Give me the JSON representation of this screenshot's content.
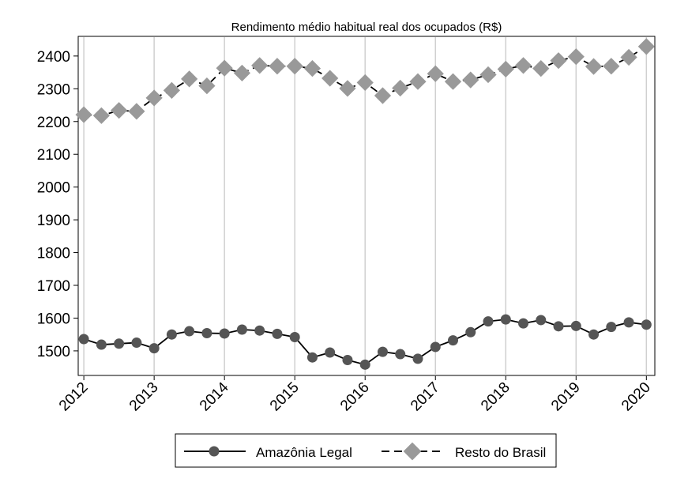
{
  "chart_data": {
    "type": "line",
    "title": "Rendimento médio habitual real dos ocupados (R$)",
    "xlabel": "",
    "ylabel": "",
    "x_tick_labels": [
      "2012",
      "2013",
      "2014",
      "2015",
      "2016",
      "2017",
      "2018",
      "2019",
      "2020"
    ],
    "x_range": [
      2011.92,
      2020.12
    ],
    "ylim": [
      1425,
      2460
    ],
    "y_ticks": [
      1500,
      1600,
      1700,
      1800,
      1900,
      2000,
      2100,
      2200,
      2300,
      2400
    ],
    "grid": "vertical lines at each year",
    "legend_position": "bottom",
    "x": [
      2012.0,
      2012.25,
      2012.5,
      2012.75,
      2013.0,
      2013.25,
      2013.5,
      2013.75,
      2014.0,
      2014.25,
      2014.5,
      2014.75,
      2015.0,
      2015.25,
      2015.5,
      2015.75,
      2016.0,
      2016.25,
      2016.5,
      2016.75,
      2017.0,
      2017.25,
      2017.5,
      2017.75,
      2018.0,
      2018.25,
      2018.5,
      2018.75,
      2019.0,
      2019.25,
      2019.5,
      2019.75,
      2020.0
    ],
    "series": [
      {
        "name": "Amazônia Legal",
        "style": "solid",
        "marker": "circle",
        "color": "#555555",
        "values": [
          1536,
          1519,
          1522,
          1525,
          1508,
          1550,
          1560,
          1554,
          1553,
          1565,
          1562,
          1552,
          1542,
          1480,
          1495,
          1472,
          1458,
          1497,
          1490,
          1476,
          1512,
          1532,
          1557,
          1590,
          1596,
          1584,
          1594,
          1575,
          1576,
          1550,
          1573,
          1587,
          1580
        ]
      },
      {
        "name": "Resto do Brasil",
        "style": "dashed",
        "marker": "diamond",
        "color": "#999999",
        "values": [
          2221,
          2218,
          2234,
          2231,
          2272,
          2295,
          2330,
          2309,
          2363,
          2348,
          2371,
          2369,
          2369,
          2362,
          2332,
          2301,
          2319,
          2279,
          2302,
          2322,
          2346,
          2322,
          2327,
          2343,
          2360,
          2371,
          2362,
          2386,
          2398,
          2368,
          2369,
          2396,
          2429
        ]
      }
    ]
  }
}
